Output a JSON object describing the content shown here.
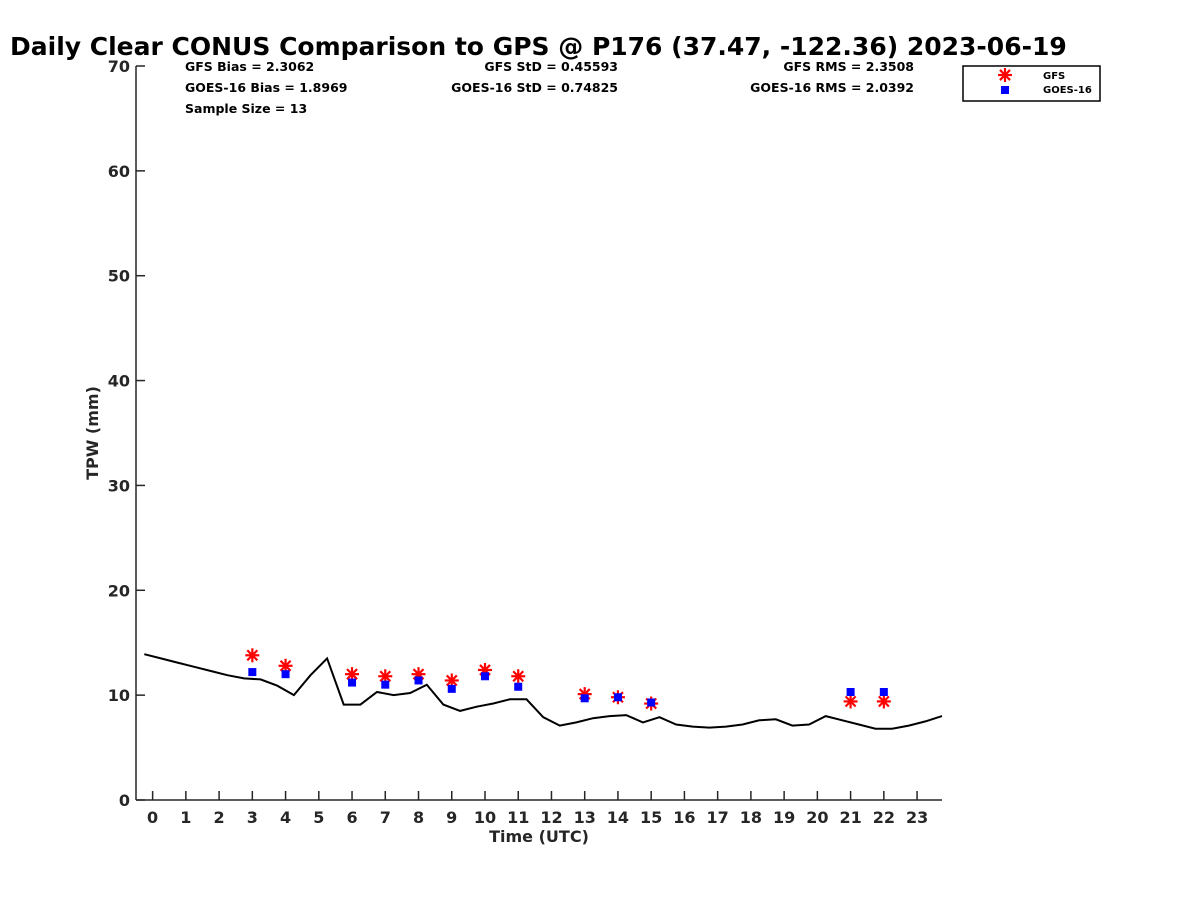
{
  "chart_data": {
    "type": "scatter",
    "title": "Daily Clear CONUS Comparison to GPS @ P176 (37.47, -122.36) 2023-06-19",
    "xlabel": "Time (UTC)",
    "ylabel": "TPW (mm)",
    "xlim": [
      -0.5,
      23.75
    ],
    "ylim": [
      0,
      70
    ],
    "x_ticks": [
      0,
      1,
      2,
      3,
      4,
      5,
      6,
      7,
      8,
      9,
      10,
      11,
      12,
      13,
      14,
      15,
      16,
      17,
      18,
      19,
      20,
      21,
      22,
      23
    ],
    "y_ticks": [
      0,
      10,
      20,
      30,
      40,
      50,
      60,
      70
    ],
    "grid": false,
    "legend_position": "top-right",
    "stats": {
      "gfs_bias": "GFS Bias = 2.3062",
      "goes_bias": "GOES-16 Bias = 1.8969",
      "sample_size": "Sample Size = 13",
      "gfs_std": "GFS StD = 0.45593",
      "goes_std": "GOES-16 StD = 0.74825",
      "gfs_rms": "GFS RMS = 2.3508",
      "goes_rms": "GOES-16 RMS = 2.0392"
    },
    "series": [
      {
        "name": "GFS",
        "marker": "asterisk",
        "color": "#ff0000",
        "x": [
          3,
          4,
          6,
          7,
          8,
          9,
          10,
          11,
          13,
          14,
          15,
          21,
          22
        ],
        "y": [
          13.8,
          12.8,
          12.0,
          11.8,
          12.0,
          11.4,
          12.4,
          11.8,
          10.1,
          9.8,
          9.2,
          9.4,
          9.4
        ]
      },
      {
        "name": "GOES-16",
        "marker": "square",
        "color": "#0000ff",
        "x": [
          3,
          4,
          6,
          7,
          8,
          9,
          10,
          11,
          13,
          14,
          15,
          21,
          22
        ],
        "y": [
          12.2,
          12.0,
          11.2,
          11.0,
          11.4,
          10.6,
          11.8,
          10.8,
          9.7,
          9.8,
          9.3,
          10.3,
          10.3
        ]
      },
      {
        "marker": "line",
        "color": "#000000",
        "x": [
          -0.25,
          0.25,
          0.75,
          1.25,
          1.75,
          2.25,
          2.75,
          3.25,
          3.75,
          4.25,
          4.75,
          5.25,
          5.75,
          6.25,
          6.75,
          7.25,
          7.75,
          8.25,
          8.75,
          9.25,
          9.75,
          10.25,
          10.75,
          11.25,
          11.75,
          12.25,
          12.75,
          13.25,
          13.75,
          14.25,
          14.75,
          15.25,
          15.75,
          16.25,
          16.75,
          17.25,
          17.75,
          18.25,
          18.75,
          19.25,
          19.75,
          20.25,
          20.75,
          21.25,
          21.75,
          22.25,
          22.75,
          23.25,
          23.75
        ],
        "y": [
          13.9,
          13.5,
          13.1,
          12.7,
          12.3,
          11.9,
          11.6,
          11.5,
          10.9,
          10.0,
          11.9,
          13.5,
          9.1,
          9.1,
          10.3,
          10.0,
          10.2,
          11.0,
          9.1,
          8.5,
          8.9,
          9.2,
          9.6,
          9.6,
          7.9,
          7.1,
          7.4,
          7.8,
          8.0,
          8.1,
          7.4,
          7.9,
          7.2,
          7.0,
          6.9,
          7.0,
          7.2,
          7.6,
          7.7,
          7.1,
          7.2,
          8.0,
          7.6,
          7.2,
          6.8,
          6.8,
          7.1,
          7.5,
          8.0
        ]
      }
    ]
  }
}
